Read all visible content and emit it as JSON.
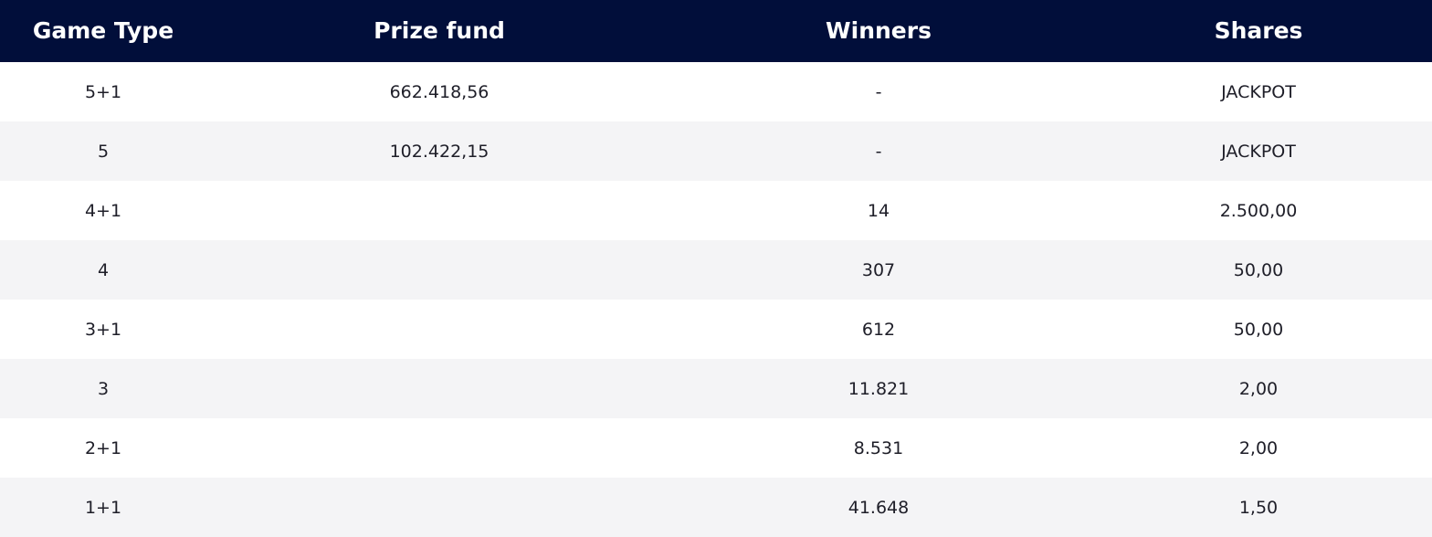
{
  "header": {
    "game_type": "Game Type",
    "prize_fund": "Prize fund",
    "winners": "Winners",
    "shares": "Shares"
  },
  "rows": [
    {
      "game_type": "5+1",
      "prize_fund": "662.418,56",
      "winners": "-",
      "shares": "JACKPOT"
    },
    {
      "game_type": "5",
      "prize_fund": "102.422,15",
      "winners": "-",
      "shares": "JACKPOT"
    },
    {
      "game_type": "4+1",
      "prize_fund": "",
      "winners": "14",
      "shares": "2.500,00"
    },
    {
      "game_type": "4",
      "prize_fund": "",
      "winners": "307",
      "shares": "50,00"
    },
    {
      "game_type": "3+1",
      "prize_fund": "",
      "winners": "612",
      "shares": "50,00"
    },
    {
      "game_type": "3",
      "prize_fund": "",
      "winners": "11.821",
      "shares": "2,00"
    },
    {
      "game_type": "2+1",
      "prize_fund": "",
      "winners": "8.531",
      "shares": "2,00"
    },
    {
      "game_type": "1+1",
      "prize_fund": "",
      "winners": "41.648",
      "shares": "1,50"
    }
  ],
  "colors": {
    "header_bg": "#010e3a",
    "header_text": "#ffffff",
    "row_alt_bg": "#f4f4f6"
  }
}
